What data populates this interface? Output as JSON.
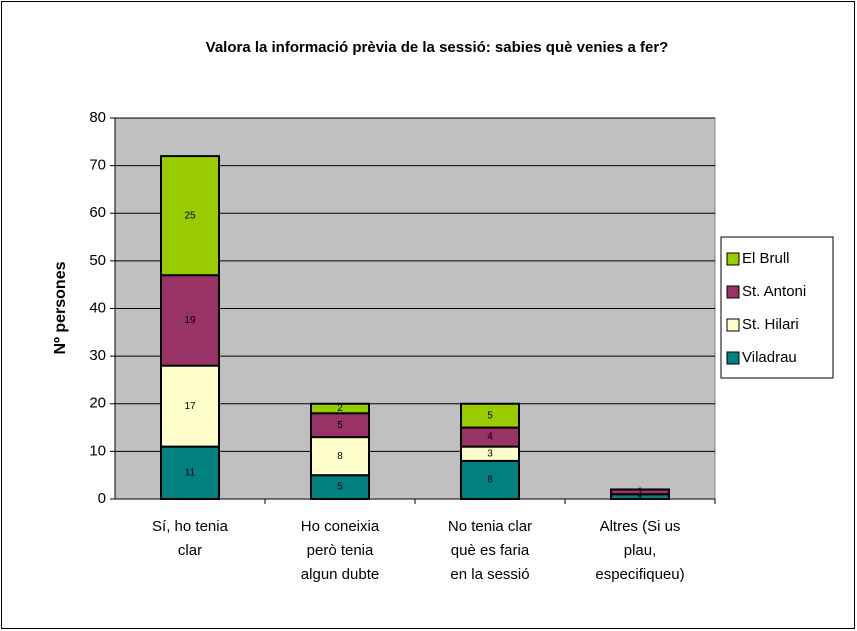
{
  "chart_data": {
    "type": "stacked_bar",
    "title": "Valora la informació prèvia de la sessió: sabies què venies a fer?",
    "y_label": "Nº persones",
    "categories": [
      [
        "Sí, ho tenia",
        "clar"
      ],
      [
        "Ho coneixia",
        "però tenia",
        "algun dubte"
      ],
      [
        "No tenia clar",
        "què es faria",
        "en la sessió"
      ],
      [
        "Altres (Si us",
        "plau,",
        "especifiqueu)"
      ]
    ],
    "series": [
      {
        "name": "Viladrau",
        "color": "#008080",
        "values": [
          11,
          5,
          8,
          1
        ]
      },
      {
        "name": "St. Hilari",
        "color": "#ffffcc",
        "values": [
          17,
          8,
          3,
          0
        ]
      },
      {
        "name": "St. Antoni",
        "color": "#993366",
        "values": [
          19,
          5,
          4,
          1
        ]
      },
      {
        "name": "El Brull",
        "color": "#99cc00",
        "values": [
          25,
          2,
          5,
          null
        ]
      }
    ],
    "ylim": [
      0,
      80
    ],
    "yticks": [
      0,
      10,
      20,
      30,
      40,
      50,
      60,
      70,
      80
    ],
    "grid": true,
    "plot_background": "#c0c0c0",
    "legend": "right"
  }
}
